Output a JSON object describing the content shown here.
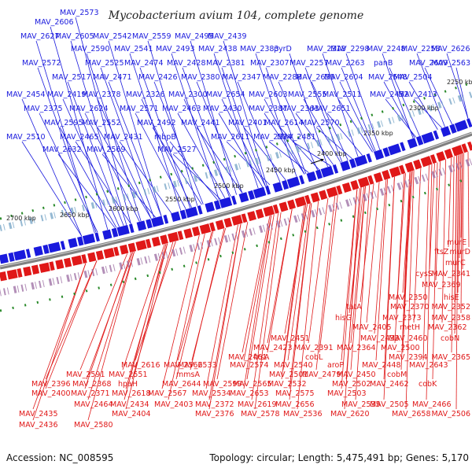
{
  "title": "Mycobacterium avium 104, complete genome",
  "footer": {
    "accession": "Accession: NC_008595",
    "summary": "Topology: circular; Length: 5,475,491 bp; Genes: 5,170"
  },
  "colors": {
    "forward": "#1a1add",
    "reverse": "#e01818",
    "backbone": "#808080",
    "tick": "#2a8a2a"
  },
  "ticks": [
    "2250 kbp",
    "2300 kbp",
    "2350 kbp",
    "2400 kbp",
    "2450 kbp",
    "2500 kbp",
    "2550 kbp",
    "2600 kbp",
    "2650 kbp",
    "2700 kbp"
  ],
  "forward_genes": [
    "MAV_2573",
    "MAV_2606",
    "MAV_2627",
    "MAV_2605",
    "MAV_2542",
    "MAV_2559",
    "MAV_2495",
    "MAV_2439",
    "MAV_2590",
    "MAV_2541",
    "MAV_2493",
    "MAV_2438",
    "MAV_2383",
    "pyrD",
    "MAV_2318",
    "MAV_2298",
    "MAV_2248",
    "MAV_2258",
    "MAV_2626",
    "MAV_2572",
    "MAV_2525",
    "MAV_2474",
    "MAV_2428",
    "MAV_2381",
    "MAV_2307",
    "MAV_2257",
    "MAV_2263",
    "panB",
    "MAV_2609",
    "MAV_2563",
    "MAV_2517",
    "MAV_2471",
    "MAV_2426",
    "MAV_2380",
    "MAV_2347",
    "MAV_2288",
    "MAV_2655",
    "MAV_2604",
    "MAV_2548",
    "MAV_2504",
    "MAV_2454",
    "MAV_2419",
    "MAV_2378",
    "MAV_2326",
    "MAV_2300",
    "MAV_2654",
    "MAV_2603",
    "MAV_2555",
    "MAV_2511",
    "MAV_2452",
    "MAV_2413",
    "MAV_2375",
    "MAV_2624",
    "MAV_2571",
    "MAV_2463",
    "MAV_2430",
    "MAV_2387",
    "MAV_2363",
    "MAV_2651",
    "MAV_2595",
    "MAV_2552",
    "MAV_2492",
    "MAV_2441",
    "MAV_2401",
    "MAV_2614",
    "MAV_2570",
    "MAV_2510",
    "MAV_2465",
    "MAV_2431",
    "mbpB",
    "MAV_2611",
    "MAV_2524",
    "MAV_2481",
    "MAV_2632",
    "MAV_2569",
    "MAV_2527"
  ],
  "reverse_genes": [
    "murE",
    "ftsZ",
    "murD",
    "murC",
    "cysS",
    "MAV_2341",
    "MAV_2369",
    "MAV_2350",
    "hisE",
    "tatA",
    "MAV_2370",
    "MAV_2352",
    "hisG",
    "MAV_2373",
    "MAV_2358",
    "MAV_2405",
    "metH",
    "MAV_2362",
    "MAV_2451",
    "MAV_2433",
    "MAV_2460",
    "cobN",
    "MAV_2423",
    "MAV_2391",
    "MAV_2364",
    "MAV_2500",
    "MAV_2461",
    "fxsA",
    "cobL",
    "MAV_2394",
    "MAV_2365",
    "MAV_2616",
    "MAV_2566",
    "MAV_2533",
    "MAV_2574",
    "MAV_2540",
    "aroP",
    "MAV_2448",
    "MAV_2643",
    "MAV_2591",
    "MAV_2551",
    "mmsA",
    "MAV_2501",
    "MAV_2479",
    "MAV_2450",
    "cobM",
    "MAV_2396",
    "MAV_2368",
    "hpaH",
    "MAV_2644",
    "MAV_2599",
    "MAV_2565",
    "MAV_2532",
    "MAV_2502",
    "MAV_2462",
    "cobK",
    "MAV_2400",
    "MAV_2371",
    "MAV_2618",
    "MAV_2567",
    "MAV_2534",
    "MAV_2653",
    "MAV_2575",
    "MAV_2503",
    "MAV_2464",
    "MAV_2434",
    "MAV_2403",
    "MAV_2372",
    "MAV_2619",
    "MAV_2656",
    "MAV_2535",
    "MAV_2505",
    "MAV_2466",
    "MAV_2435",
    "MAV_2404",
    "MAV_2376",
    "MAV_2578",
    "MAV_2536",
    "MAV_2620",
    "MAV_2658",
    "MAV_2506",
    "MAV_2436",
    "MAV_2580"
  ]
}
